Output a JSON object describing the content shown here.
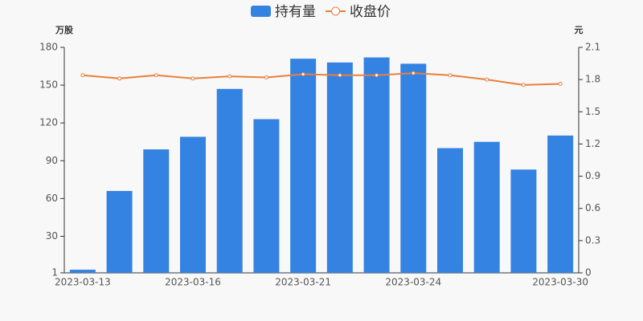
{
  "chart_data": {
    "type": "bar_line",
    "y_label": "万股",
    "y2_label": "元",
    "categories": [
      "2023-03-13",
      null,
      null,
      "2023-03-16",
      null,
      null,
      "2023-03-21",
      null,
      null,
      "2023-03-24",
      null,
      null,
      null,
      "2023-03-30"
    ],
    "series": [
      {
        "name": "持有量",
        "type": "bar",
        "color": "#3483e3",
        "values": [
          3.5,
          66,
          99,
          109,
          147,
          123,
          171,
          168,
          172,
          167,
          100,
          105,
          83,
          110
        ]
      },
      {
        "name": "收盘价",
        "type": "line",
        "axis": "y2",
        "color": "#e8803c",
        "values": [
          1.84,
          1.81,
          1.84,
          1.81,
          1.83,
          1.82,
          1.85,
          1.84,
          1.84,
          1.86,
          1.84,
          1.8,
          1.75,
          1.76
        ]
      }
    ],
    "ylim": [
      1,
      180
    ],
    "yticks": [
      1,
      30,
      60,
      90,
      120,
      150,
      180
    ],
    "y2lim": [
      0,
      2.1
    ],
    "y2ticks": [
      0,
      0.3,
      0.6,
      0.9,
      1.2,
      1.5,
      1.8,
      2.1
    ]
  }
}
